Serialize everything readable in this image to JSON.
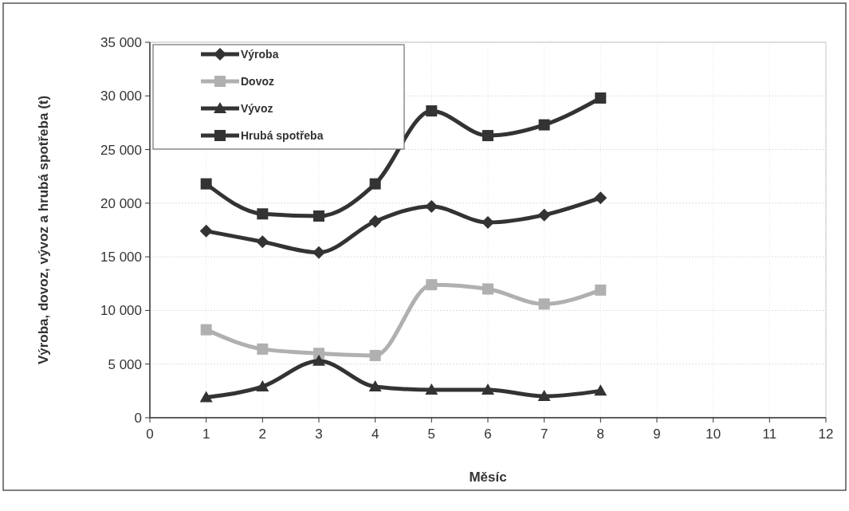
{
  "chart_data": {
    "type": "line",
    "xlabel": "Měsíc",
    "ylabel": "Výroba, dovoz, vývoz a hrubá spotřeba (t)",
    "x": [
      1,
      2,
      3,
      4,
      5,
      6,
      7,
      8
    ],
    "series": [
      {
        "name": "Výroba",
        "color": "#333333",
        "marker": "diamond",
        "values": [
          17400,
          16400,
          15400,
          18300,
          19700,
          18200,
          18900,
          20500
        ]
      },
      {
        "name": "Dovoz",
        "color": "#b0b0b0",
        "marker": "square",
        "values": [
          8200,
          6400,
          6000,
          5800,
          12400,
          12000,
          10600,
          11900
        ]
      },
      {
        "name": "Vývoz",
        "color": "#333333",
        "marker": "triangle",
        "values": [
          1900,
          2900,
          5300,
          2900,
          2600,
          2600,
          2000,
          2500
        ]
      },
      {
        "name": "Hrubá spotřeba",
        "color": "#333333",
        "marker": "square",
        "values": [
          21800,
          19000,
          18800,
          21800,
          28600,
          26300,
          27300,
          29800
        ]
      }
    ],
    "xlim": [
      0,
      12
    ],
    "xticks": [
      0,
      1,
      2,
      3,
      4,
      5,
      6,
      7,
      8,
      9,
      10,
      11,
      12
    ],
    "ylim": [
      0,
      35000
    ],
    "yticks": [
      0,
      {
        "value": 5000,
        "label": "5 000"
      },
      {
        "value": 10000,
        "label": "10 000"
      },
      {
        "value": 15000,
        "label": "15 000"
      },
      {
        "value": 20000,
        "label": "20 000"
      },
      {
        "value": 25000,
        "label": "25 000"
      },
      {
        "value": 30000,
        "label": "30 000"
      },
      {
        "value": 35000,
        "label": "35 000"
      }
    ],
    "grid": true,
    "legend": "top left"
  }
}
